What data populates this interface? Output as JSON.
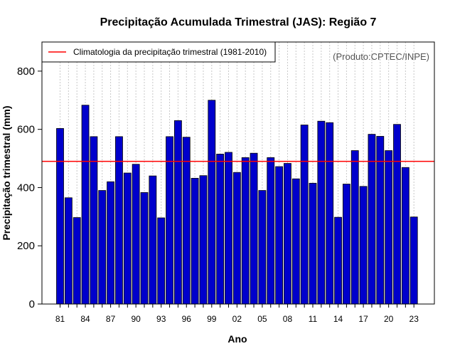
{
  "chart_data": {
    "type": "bar",
    "title": "Precipitação Acumulada Trimestral (JAS): Região 7",
    "xlabel": "Ano",
    "ylabel": "Precipitação trimestral (mm)",
    "ylim": [
      0,
      900
    ],
    "yticks": [
      0,
      200,
      400,
      600,
      800
    ],
    "categories": [
      "81",
      "82",
      "83",
      "84",
      "85",
      "86",
      "87",
      "88",
      "89",
      "90",
      "91",
      "92",
      "93",
      "94",
      "95",
      "96",
      "97",
      "98",
      "99",
      "00",
      "01",
      "02",
      "03",
      "04",
      "05",
      "06",
      "07",
      "08",
      "09",
      "10",
      "11",
      "12",
      "13",
      "14",
      "15",
      "16",
      "17",
      "18",
      "19",
      "20",
      "21",
      "22",
      "23"
    ],
    "xtick_labels": [
      "81",
      "84",
      "87",
      "90",
      "93",
      "96",
      "99",
      "02",
      "05",
      "08",
      "11",
      "14",
      "17",
      "20",
      "23"
    ],
    "values": [
      603,
      365,
      297,
      683,
      575,
      390,
      420,
      575,
      450,
      480,
      383,
      440,
      296,
      575,
      630,
      573,
      432,
      441,
      700,
      515,
      521,
      452,
      503,
      518,
      390,
      503,
      472,
      483,
      430,
      615,
      415,
      628,
      623,
      298,
      412,
      527,
      404,
      583,
      576,
      527,
      617,
      469,
      299
    ],
    "bar_color": "#0000cc",
    "climatology": {
      "value": 490,
      "label": "Climatologia da precipitação trimestral (1981-2010)",
      "color": "#ff0000"
    },
    "credit": "(Produto:CPTEC/INPE)",
    "grid": "vertical dotted",
    "legend_position": "top-left"
  }
}
